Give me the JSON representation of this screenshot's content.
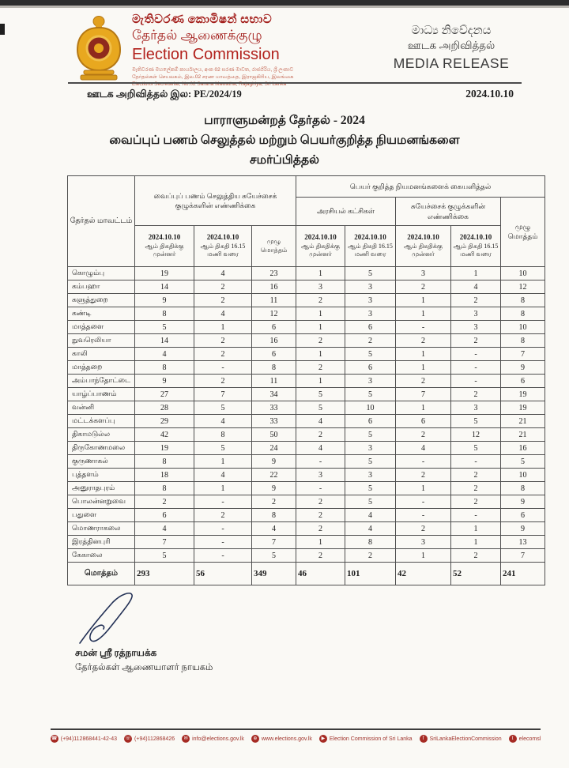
{
  "header": {
    "emblem_icon": "sri-lanka-national-emblem",
    "org_sinhala": "මැතිවරණ කොමිෂන් සභාව",
    "org_tamil": "தேர்தல் ஆணைக்குழு",
    "org_english": "Election Commission",
    "address_sinhala": "මැතිවරණ මහලේකම් කාර්යාලය, අංක 02 සරණ මාවත, රාජගිරිය, ශ්‍රී ලංකාව",
    "address_tamil": "தேர்தல்கள் செயலகம், இல.02 சரண மாவத்தை, இராஜகிரிய, இலங்கை",
    "address_english": "Elections Secretariat, No.02 Sarana Mawatha, Rajagiriya, Sri Lanka",
    "media_release_sinhala": "මාධ්‍ය නිවේදනය",
    "media_release_tamil": "ஊடக அறிவித்தல்",
    "media_release_english": "MEDIA RELEASE"
  },
  "meta": {
    "ref_prefix": "ஊடக அறிவித்தல் இல:",
    "ref_number": "PE/2024/19",
    "date": "2024.10.10"
  },
  "title": {
    "line1": "பாராளுமன்றத் தேர்தல் - 2024",
    "line2": "வைப்புப் பணம் செலுத்தல் மற்றும் பெயர்குறித்த நியமனங்களை",
    "line3": "சமர்ப்பித்தல்"
  },
  "table": {
    "headers": {
      "district": "தேர்தல் மாவட்டம்",
      "deposit_group": "வைப்புப் பணம் செலுத்திய சுயேச்சைக் குழுக்களின் எண்ணிக்கை",
      "nomination_group": "பெயர் குறித்த நியமனங்களைக் கையளித்தல்",
      "political_parties": "அரசியல் கட்சிகள்",
      "independent_groups": "சுயேச்சைக் குழுக்களின் எண்ணிக்கை",
      "date_value": "2024.10.10",
      "before_suffix": "ஆம் திகதிக்கு முன்னர்",
      "until_suffix": "ஆம் திகதி 16.15 மணி வரை",
      "sub_total": "முழு மொத்தம்",
      "grand_total": "முழு மொத்தம்"
    },
    "rows": [
      {
        "district": "கொழும்பு",
        "values": [
          "19",
          "4",
          "23",
          "1",
          "5",
          "3",
          "1",
          "10"
        ]
      },
      {
        "district": "கம்பஹா",
        "values": [
          "14",
          "2",
          "16",
          "3",
          "3",
          "2",
          "4",
          "12"
        ]
      },
      {
        "district": "களுத்துறை",
        "values": [
          "9",
          "2",
          "11",
          "2",
          "3",
          "1",
          "2",
          "8"
        ]
      },
      {
        "district": "கண்டி",
        "values": [
          "8",
          "4",
          "12",
          "1",
          "3",
          "1",
          "3",
          "8"
        ]
      },
      {
        "district": "மாத்தளை",
        "values": [
          "5",
          "1",
          "6",
          "1",
          "6",
          "-",
          "3",
          "10"
        ]
      },
      {
        "district": "நுவரெலியா",
        "values": [
          "14",
          "2",
          "16",
          "2",
          "2",
          "2",
          "2",
          "8"
        ]
      },
      {
        "district": "காலி",
        "values": [
          "4",
          "2",
          "6",
          "1",
          "5",
          "1",
          "-",
          "7"
        ]
      },
      {
        "district": "மாத்தறை",
        "values": [
          "8",
          "-",
          "8",
          "2",
          "6",
          "1",
          "-",
          "9"
        ]
      },
      {
        "district": "அம்பாந்தோட்டை",
        "values": [
          "9",
          "2",
          "11",
          "1",
          "3",
          "2",
          "-",
          "6"
        ]
      },
      {
        "district": "யாழ்ப்பாணம்",
        "values": [
          "27",
          "7",
          "34",
          "5",
          "5",
          "7",
          "2",
          "19"
        ]
      },
      {
        "district": "வன்னி",
        "values": [
          "28",
          "5",
          "33",
          "5",
          "10",
          "1",
          "3",
          "19"
        ]
      },
      {
        "district": "மட்டக்களப்பு",
        "values": [
          "29",
          "4",
          "33",
          "4",
          "6",
          "6",
          "5",
          "21"
        ]
      },
      {
        "district": "திகாமடுல்ல",
        "values": [
          "42",
          "8",
          "50",
          "2",
          "5",
          "2",
          "12",
          "21"
        ]
      },
      {
        "district": "திருகோணமலை",
        "values": [
          "19",
          "5",
          "24",
          "4",
          "3",
          "4",
          "5",
          "16"
        ]
      },
      {
        "district": "குருணாகல்",
        "values": [
          "8",
          "1",
          "9",
          "-",
          "5",
          "-",
          "-",
          "5"
        ]
      },
      {
        "district": "புத்தளம்",
        "values": [
          "18",
          "4",
          "22",
          "3",
          "3",
          "2",
          "2",
          "10"
        ]
      },
      {
        "district": "அனுராதபுரம்",
        "values": [
          "8",
          "1",
          "9",
          "-",
          "5",
          "1",
          "2",
          "8"
        ]
      },
      {
        "district": "பொலன்னறுவை",
        "values": [
          "2",
          "-",
          "2",
          "2",
          "5",
          "-",
          "2",
          "9"
        ]
      },
      {
        "district": "பதுளை",
        "values": [
          "6",
          "2",
          "8",
          "2",
          "4",
          "-",
          "-",
          "6"
        ]
      },
      {
        "district": "மொணராகலை",
        "values": [
          "4",
          "-",
          "4",
          "2",
          "4",
          "2",
          "1",
          "9"
        ]
      },
      {
        "district": "இரத்தினபுரி",
        "values": [
          "7",
          "-",
          "7",
          "1",
          "8",
          "3",
          "1",
          "13"
        ]
      },
      {
        "district": "கேகாலை",
        "values": [
          "5",
          "-",
          "5",
          "2",
          "2",
          "1",
          "2",
          "7"
        ]
      }
    ],
    "totals": {
      "label": "மொத்தம்",
      "values": [
        "293",
        "56",
        "349",
        "46",
        "101",
        "42",
        "52",
        "241"
      ]
    }
  },
  "signature": {
    "name": "சமன் ஸ்ரீ ரத்நாயக்க",
    "role": "தேர்தல்கள் ஆணையாளர் நாயகம்"
  },
  "footer": {
    "items": [
      {
        "icon": "phone-icon",
        "glyph": "☎",
        "label": "(+94)112868441-42-43"
      },
      {
        "icon": "fax-icon",
        "glyph": "☏",
        "label": "(+94)112868426"
      },
      {
        "icon": "email-icon",
        "glyph": "✉",
        "label": "info@elections.gov.lk"
      },
      {
        "icon": "globe-icon",
        "glyph": "⊕",
        "label": "www.elections.gov.lk"
      },
      {
        "icon": "youtube-icon",
        "glyph": "▶",
        "label": "Election Commission of Sri Lanka"
      },
      {
        "icon": "facebook-icon",
        "glyph": "f",
        "label": "SriLankaElectionCommission"
      },
      {
        "icon": "twitter-icon",
        "glyph": "t",
        "label": "elecomsl"
      }
    ]
  }
}
